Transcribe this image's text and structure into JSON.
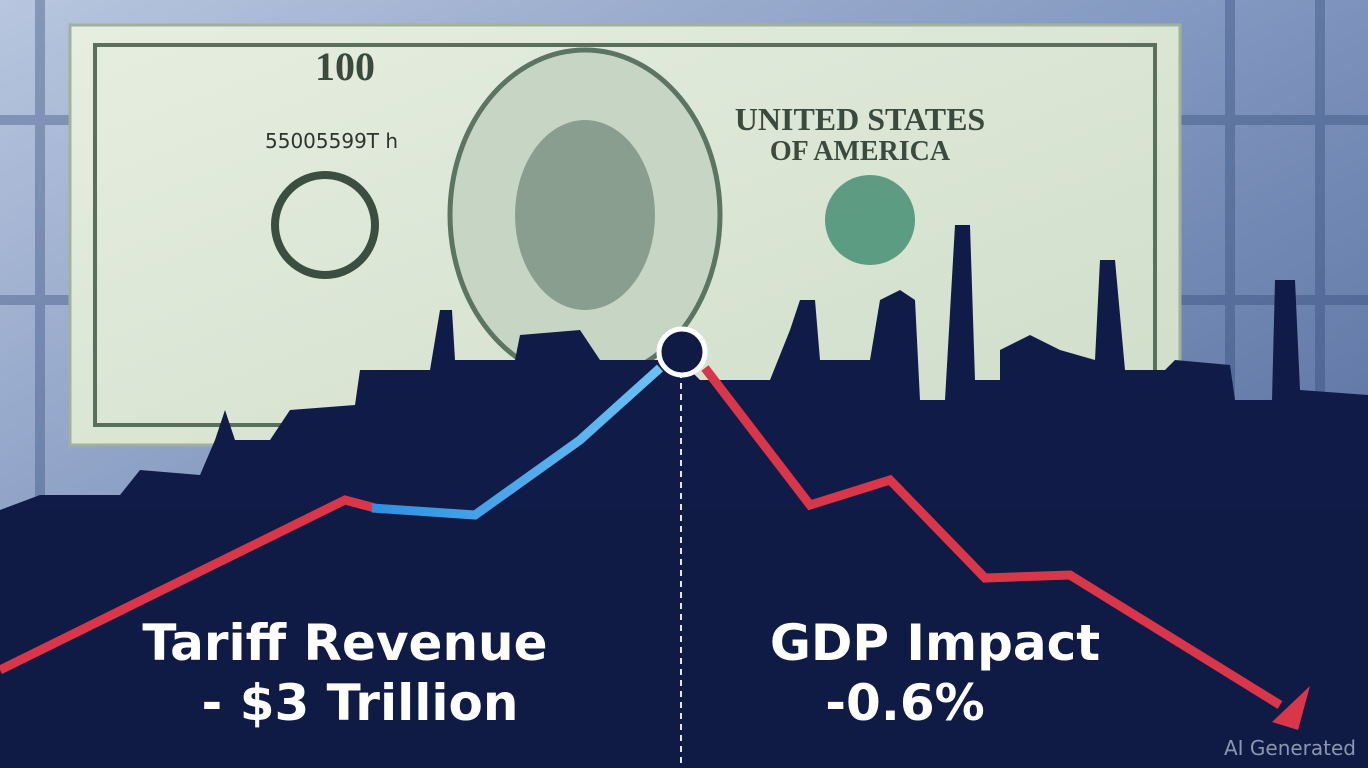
{
  "left_panel": {
    "title": "Tariff Revenue",
    "value": "- $3 Trillion"
  },
  "right_panel": {
    "title": "GDP Impact",
    "value": "-0.6%"
  },
  "banknote": {
    "denomination": "100",
    "country": "UNITED STATES",
    "country_line2": "OF AMERICA",
    "serial": "55005599T h"
  },
  "watermark": "AI Generated"
}
